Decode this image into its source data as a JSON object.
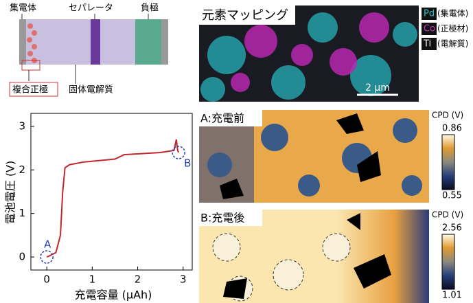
{
  "schematic": {
    "collector": "集電体",
    "separator": "セパレータ",
    "anode": "負極",
    "composite_cathode": "複合正極",
    "electrolyte": "固体電解質"
  },
  "chart_data": {
    "type": "line",
    "x_label": "充電容量 (μAh)",
    "y_label": "電池電圧 (V)",
    "x": [
      0,
      0.05,
      0.1,
      0.2,
      0.3,
      0.35,
      0.4,
      0.5,
      0.8,
      1.5,
      1.7,
      2.5,
      2.8,
      2.85,
      2.88,
      2.9
    ],
    "values": [
      0,
      0.02,
      0.05,
      0.1,
      0.5,
      1.5,
      2.05,
      2.12,
      2.18,
      2.25,
      2.35,
      2.4,
      2.45,
      2.7,
      2.45,
      2.4
    ],
    "color": "#c0282d",
    "xlim": [
      -0.35,
      3.2
    ],
    "ylim": [
      -0.3,
      3.3
    ],
    "xticks": [
      0,
      1,
      2,
      3
    ],
    "yticks": [
      0,
      1,
      2,
      3
    ],
    "annotations": [
      {
        "text": "A",
        "x": 0,
        "y": 0
      },
      {
        "text": "B",
        "x": 2.9,
        "y": 2.4
      }
    ]
  },
  "mapping": {
    "title": "元素マッピング",
    "legend": [
      {
        "element": "Pd",
        "label": "(集電体)",
        "color": "#2ec4c4"
      },
      {
        "element": "Co",
        "label": "(正極材)",
        "color": "#d030c8"
      },
      {
        "element": "Ti",
        "label": "(電解質)",
        "color": "#f0f0f0"
      }
    ],
    "scale_bar": "2 μm"
  },
  "cpd_maps": [
    {
      "title": "A:充電前",
      "unit": "CPD (V)",
      "max": 0.86,
      "min": 0.55
    },
    {
      "title": "B:充電後",
      "unit": "CPD (V)",
      "max": 2.56,
      "min": 1.01
    }
  ]
}
